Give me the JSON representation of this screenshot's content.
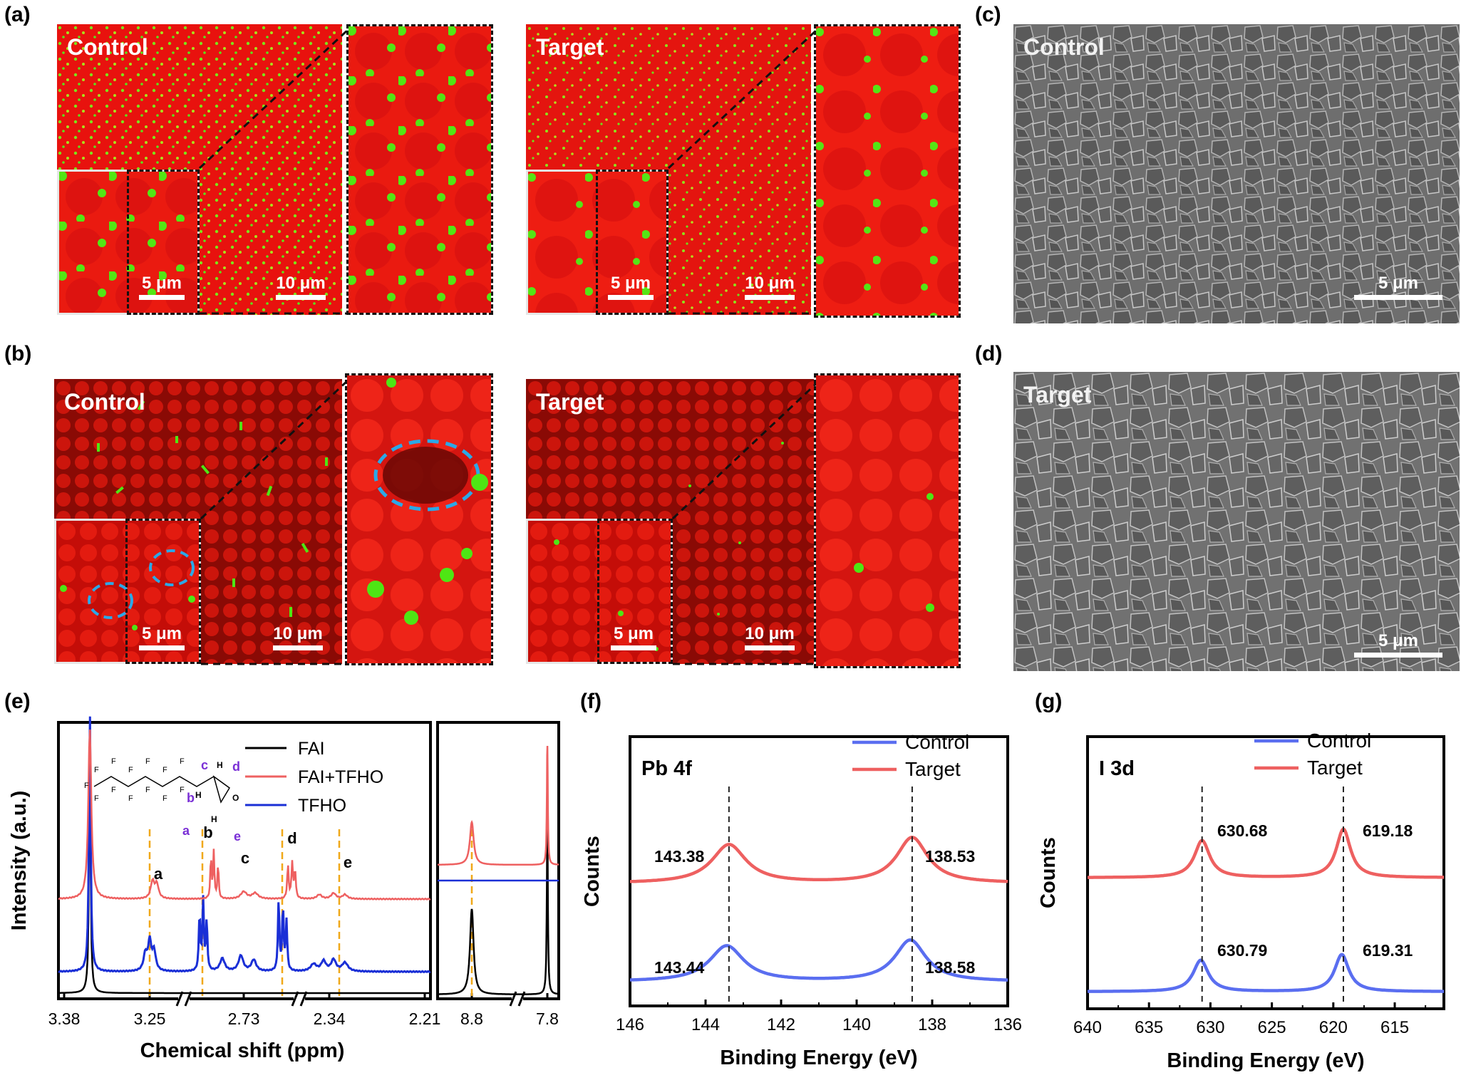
{
  "panels": {
    "a": {
      "label": "(a)",
      "left": {
        "title": "Control",
        "scale_inset": "5 μm",
        "scale_main": "10 μm"
      },
      "right": {
        "title": "Target",
        "scale_inset": "5 μm",
        "scale_main": "10 μm"
      }
    },
    "b": {
      "label": "(b)",
      "left": {
        "title": "Control",
        "scale_inset": "5 μm",
        "scale_main": "10 μm"
      },
      "right": {
        "title": "Target",
        "scale_inset": "5 μm",
        "scale_main": "10 μm"
      }
    },
    "c": {
      "label": "(c)",
      "title": "Control",
      "scale": "5 μm"
    },
    "d": {
      "label": "(d)",
      "title": "Target",
      "scale": "5 μm"
    },
    "e": {
      "label": "(e)"
    },
    "f": {
      "label": "(f)"
    },
    "g": {
      "label": "(g)"
    }
  },
  "colors": {
    "red_map": "#e8120e",
    "green_map": "#39e614",
    "control": "#5a6ef0",
    "target": "#ee6060",
    "fai": "#000000",
    "tfho": "#1a2fd6",
    "guide": "#f0a818"
  },
  "chart_data": [
    {
      "type": "line",
      "id": "e",
      "xlabel": "Chemical shift (ppm)",
      "ylabel": "Intensity (a.u.)",
      "xticks_left": [
        "3.38",
        "3.25",
        "2.73",
        "2.34",
        "2.21"
      ],
      "xticks_right": [
        "8.8",
        "7.8"
      ],
      "series": [
        {
          "name": "FAI",
          "color": "#000000"
        },
        {
          "name": "FAI+TFHO",
          "color": "#ee6060"
        },
        {
          "name": "TFHO",
          "color": "#1a2fd6"
        }
      ],
      "peak_labels": [
        "a",
        "b",
        "c",
        "d",
        "e"
      ],
      "structure_labels": [
        "c",
        "d",
        "b",
        "a",
        "e",
        "H",
        "H",
        "H",
        "O",
        "F"
      ]
    },
    {
      "type": "line",
      "id": "f",
      "title": "Pb 4f",
      "xlabel": "Binding Energy (eV)",
      "ylabel": "Counts",
      "xlim": [
        146,
        136
      ],
      "xticks": [
        "146",
        "144",
        "142",
        "140",
        "138",
        "136"
      ],
      "series": [
        {
          "name": "Control",
          "color": "#5a6ef0",
          "peaks": [
            143.44,
            138.58
          ]
        },
        {
          "name": "Target",
          "color": "#ee6060",
          "peaks": [
            143.38,
            138.53
          ]
        }
      ],
      "annotations": {
        "target": [
          "143.38",
          "138.53"
        ],
        "control": [
          "143.44",
          "138.58"
        ]
      }
    },
    {
      "type": "line",
      "id": "g",
      "title": "I 3d",
      "xlabel": "Binding Energy (eV)",
      "ylabel": "Counts",
      "xlim": [
        640,
        611
      ],
      "xticks": [
        "640",
        "635",
        "630",
        "625",
        "620",
        "615"
      ],
      "series": [
        {
          "name": "Control",
          "color": "#5a6ef0",
          "peaks": [
            630.79,
            619.31
          ]
        },
        {
          "name": "Target",
          "color": "#ee6060",
          "peaks": [
            630.68,
            619.18
          ]
        }
      ],
      "annotations": {
        "target": [
          "630.68",
          "619.18"
        ],
        "control": [
          "630.79",
          "619.31"
        ]
      }
    }
  ]
}
